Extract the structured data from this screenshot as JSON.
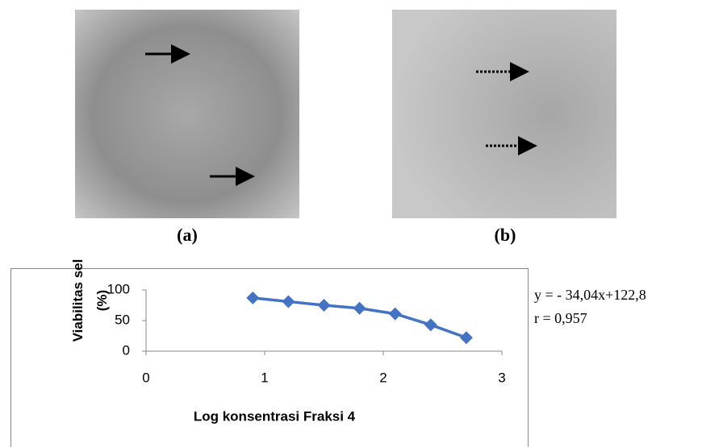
{
  "panels": [
    {
      "label": "(a)"
    },
    {
      "label": "(b)"
    }
  ],
  "equation": [
    "y = - 34,04x+122,8",
    "r = 0,957"
  ],
  "chart_data": {
    "type": "line",
    "xlabel": "Log konsentrasi Fraksi 4",
    "ylabel": "Viabilitas sel (%)",
    "x": [
      0.9,
      1.2,
      1.5,
      1.8,
      2.1,
      2.4,
      2.7
    ],
    "series": [
      {
        "color": "#4472c4",
        "values": [
          87,
          81,
          75,
          70,
          61,
          43,
          22
        ]
      }
    ],
    "xlim": [
      0,
      3
    ],
    "xticks": [
      0,
      1,
      2,
      3
    ],
    "ylim": [
      0,
      100
    ],
    "yticks": [
      0,
      50,
      100
    ],
    "grid": false
  }
}
